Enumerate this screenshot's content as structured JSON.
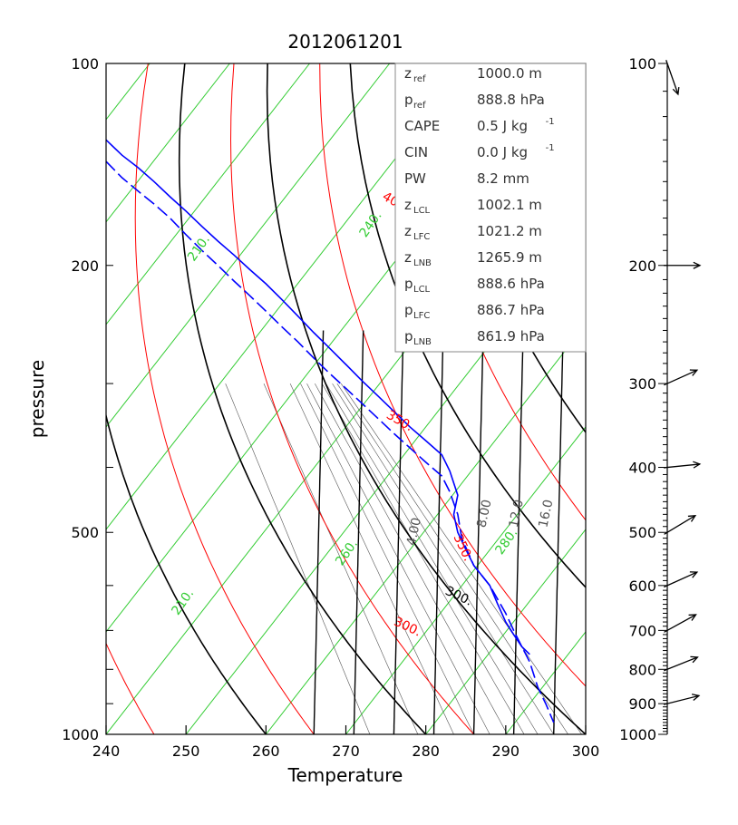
{
  "chart_data": {
    "type": "line",
    "title": "2012061201",
    "xlabel": "Temperature",
    "ylabel": "pressure",
    "xlim": [
      240,
      300
    ],
    "ylim": [
      1000,
      100
    ],
    "y_scale": "log",
    "x_ticks": [
      "240",
      "250",
      "260",
      "270",
      "280",
      "290",
      "300"
    ],
    "y_ticks": [
      "100",
      "200",
      "500",
      "1000"
    ],
    "wind_ticks": [
      "100",
      "200",
      "300",
      "400",
      "500",
      "600",
      "700",
      "800",
      "900",
      "1000"
    ],
    "colors": {
      "dry_adiabat": "#000000",
      "moist_adiabat": "#ff0000",
      "isotherm": "#33cc33",
      "mixing_ratio": "#555555",
      "sounding": "#0000ff",
      "box_border": "#888888"
    },
    "isopleth_labels": {
      "dry": [
        {
          "text": "400.",
          "p": 168,
          "theta": 400,
          "rot": 30
        },
        {
          "text": "350.",
          "p": 190,
          "theta": 350,
          "rot": 30
        },
        {
          "text": "300.",
          "p": 630,
          "theta": 300,
          "rot": 25
        },
        {
          "text": "400.",
          "p": 520,
          "theta": 400,
          "rot": 78
        }
      ],
      "moist": [
        {
          "text": "400.",
          "p": 163,
          "x": 276,
          "rot": 30
        },
        {
          "text": "350.",
          "p": 345,
          "x": 276.5,
          "rot": 30
        },
        {
          "text": "300.",
          "p": 700,
          "x": 277.5,
          "rot": 25
        },
        {
          "text": "350.",
          "p": 530,
          "x": 284.2,
          "rot": 65
        }
      ],
      "iso": [
        {
          "text": "210.",
          "p": 190,
          "x": 252,
          "rot": -55
        },
        {
          "text": "240.",
          "p": 175,
          "x": 273.5,
          "rot": -55
        },
        {
          "text": "260.",
          "p": 540,
          "x": 270.5,
          "rot": -55
        },
        {
          "text": "280.",
          "p": 520,
          "x": 290.5,
          "rot": -55
        },
        {
          "text": "210.",
          "p": 640,
          "x": 250,
          "rot": -55
        }
      ],
      "mixing": [
        {
          "text": "4.00",
          "p": 500,
          "x": 279,
          "rot": -78
        },
        {
          "text": "8.00",
          "p": 470,
          "x": 287.8,
          "rot": -78
        },
        {
          "text": "12.0",
          "p": 470,
          "x": 291.8,
          "rot": -78
        },
        {
          "text": "16.0",
          "p": 470,
          "x": 295.5,
          "rot": -78
        }
      ]
    },
    "series": [
      {
        "kind": "temperature",
        "points": [
          [
            240,
            130
          ],
          [
            242,
            137
          ],
          [
            244,
            143
          ],
          [
            246,
            150
          ],
          [
            248,
            158
          ],
          [
            250,
            166
          ],
          [
            252,
            175
          ],
          [
            254,
            184
          ],
          [
            256,
            193
          ],
          [
            258,
            203
          ],
          [
            260,
            213
          ],
          [
            262,
            225
          ],
          [
            264,
            238
          ],
          [
            266,
            252
          ],
          [
            268,
            266
          ],
          [
            270,
            281
          ],
          [
            272,
            297
          ],
          [
            274,
            313
          ],
          [
            276,
            330
          ],
          [
            278,
            348
          ],
          [
            280,
            365
          ],
          [
            282,
            383
          ],
          [
            283,
            405
          ],
          [
            284,
            440
          ],
          [
            283.5,
            470
          ],
          [
            284,
            500
          ],
          [
            285,
            530
          ],
          [
            286,
            560
          ],
          [
            288,
            600
          ],
          [
            289,
            640
          ],
          [
            290,
            680
          ],
          [
            291,
            710
          ],
          [
            292,
            740
          ],
          [
            293,
            760
          ]
        ]
      },
      {
        "kind": "dewpoint",
        "points": [
          [
            240,
            140
          ],
          [
            242,
            148
          ],
          [
            244,
            155
          ],
          [
            246,
            162
          ],
          [
            248,
            170
          ],
          [
            250,
            180
          ],
          [
            252,
            190
          ],
          [
            254,
            200
          ],
          [
            256,
            211
          ],
          [
            258,
            222
          ],
          [
            260,
            234
          ],
          [
            262,
            247
          ],
          [
            264,
            260
          ],
          [
            266,
            275
          ],
          [
            268,
            290
          ],
          [
            270,
            305
          ],
          [
            272,
            321
          ],
          [
            274,
            338
          ],
          [
            276,
            356
          ],
          [
            278,
            374
          ],
          [
            280,
            393
          ],
          [
            282,
            412
          ],
          [
            283,
            435
          ],
          [
            284,
            470
          ],
          [
            284.5,
            510
          ],
          [
            286,
            560
          ],
          [
            288,
            600
          ],
          [
            290,
            660
          ],
          [
            291,
            700
          ],
          [
            292,
            740
          ],
          [
            293,
            780
          ],
          [
            294,
            850
          ],
          [
            295,
            900
          ],
          [
            296,
            960
          ]
        ]
      }
    ],
    "winds": [
      {
        "p": 100,
        "dir": "toward",
        "dx": 0.35,
        "dy": 1
      },
      {
        "p": 200,
        "dir": "toward",
        "dx": 1,
        "dy": 0
      },
      {
        "p": 300,
        "dir": "toward",
        "dx": 1,
        "dy": -0.45
      },
      {
        "p": 400,
        "dir": "toward",
        "dx": 1,
        "dy": -0.1
      },
      {
        "p": 500,
        "dir": "toward",
        "dx": 1,
        "dy": -0.6
      },
      {
        "p": 600,
        "dir": "toward",
        "dx": 1,
        "dy": -0.45
      },
      {
        "p": 700,
        "dir": "toward",
        "dx": 1,
        "dy": -0.55
      },
      {
        "p": 800,
        "dir": "toward",
        "dx": 1,
        "dy": -0.4
      },
      {
        "p": 900,
        "dir": "toward",
        "dx": 1,
        "dy": -0.25
      }
    ]
  },
  "info_box": [
    {
      "sym": "z",
      "sub": "ref",
      "sup": "",
      "value": "1000.0 m"
    },
    {
      "sym": "p",
      "sub": "ref",
      "sup": "",
      "value": "888.8 hPa"
    },
    {
      "sym": "CAPE",
      "sub": "",
      "sup": "-1",
      "value": "0.5 J kg"
    },
    {
      "sym": "CIN",
      "sub": "",
      "sup": "-1",
      "value": "0.0 J kg"
    },
    {
      "sym": "PW",
      "sub": "",
      "sup": "",
      "value": "8.2 mm"
    },
    {
      "sym": "z",
      "sub": "LCL",
      "sup": "",
      "value": "1002.1 m"
    },
    {
      "sym": "z",
      "sub": "LFC",
      "sup": "",
      "value": "1021.2 m"
    },
    {
      "sym": "z",
      "sub": "LNB",
      "sup": "",
      "value": "1265.9 m"
    },
    {
      "sym": "p",
      "sub": "LCL",
      "sup": "",
      "value": "888.6 hPa"
    },
    {
      "sym": "p",
      "sub": "LFC",
      "sup": "",
      "value": "886.7 hPa"
    },
    {
      "sym": "p",
      "sub": "LNB",
      "sup": "",
      "value": "861.9 hPa"
    }
  ]
}
